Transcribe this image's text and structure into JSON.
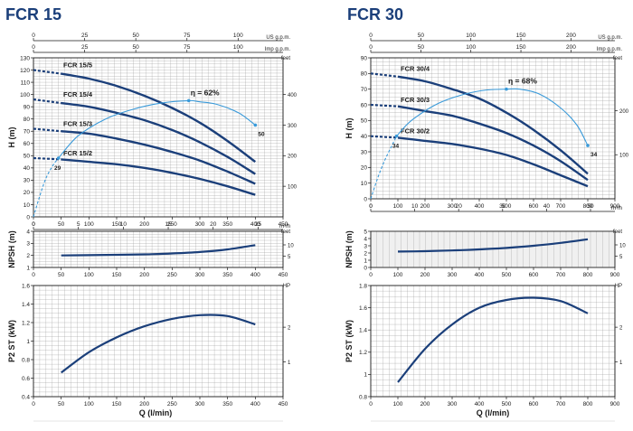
{
  "colors": {
    "curve": "#1b3f7a",
    "efficiency": "#3a9ad9",
    "grid": "#9a9a9a",
    "title": "#1b3f7a",
    "axis": "#1a1a1a"
  },
  "chart_data": [
    {
      "type": "line",
      "title": "FCR 15",
      "xlabel": "Q (l/min)",
      "xlim": [
        0,
        450
      ],
      "xticks": [
        0,
        50,
        100,
        150,
        200,
        250,
        300,
        350,
        400,
        450
      ],
      "top_axis_1": {
        "unit": "US g.p.m.",
        "ticks": [
          "0",
          "25",
          "50",
          "75",
          "100"
        ]
      },
      "top_axis_2": {
        "unit": "Imp g.p.m.",
        "ticks": [
          "0",
          "25",
          "50",
          "75",
          "100"
        ]
      },
      "bottom_axis_2": {
        "unit": "m³/h",
        "ticks": [
          "0",
          "5",
          "10",
          "15",
          "20",
          "25"
        ]
      },
      "panels": {
        "head": {
          "ylabel": "H (m)",
          "ylim": [
            0,
            130
          ],
          "yticks": [
            0,
            10,
            20,
            30,
            40,
            50,
            60,
            70,
            80,
            90,
            100,
            110,
            120,
            130
          ],
          "right_unit": "feet",
          "right_ticks": [
            "100",
            "200",
            "300",
            "400"
          ],
          "series": [
            {
              "name": "FCR 15/5",
              "x": [
                0,
                50,
                100,
                150,
                200,
                250,
                300,
                350,
                400
              ],
              "y": [
                120,
                117,
                113,
                107,
                99,
                89,
                77,
                62,
                45
              ]
            },
            {
              "name": "FCR 15/4",
              "x": [
                0,
                50,
                100,
                150,
                200,
                250,
                300,
                350,
                400
              ],
              "y": [
                96,
                93,
                90,
                85,
                79,
                71,
                61,
                49,
                35
              ]
            },
            {
              "name": "FCR 15/3",
              "x": [
                0,
                50,
                100,
                150,
                200,
                250,
                300,
                350,
                400
              ],
              "y": [
                72,
                70,
                68,
                64,
                59,
                53,
                46,
                37,
                27
              ]
            },
            {
              "name": "FCR 15/2",
              "x": [
                0,
                50,
                100,
                150,
                200,
                250,
                300,
                350,
                400
              ],
              "y": [
                48,
                47,
                45,
                43,
                40,
                36,
                31,
                25,
                18
              ]
            }
          ],
          "efficiency": {
            "label": "η = 62%",
            "start_label": "29",
            "end_label": "50",
            "dashed_x": [
              0,
              10,
              22,
              35,
              45
            ],
            "dashed_y": [
              0,
              15,
              31,
              42,
              48
            ],
            "x": [
              45,
              80,
              130,
              180,
              230,
              280,
              300,
              330,
              370,
              400
            ],
            "y": [
              48,
              66,
              80,
              88,
              93,
              95,
              94,
              92,
              85,
              75
            ]
          }
        },
        "npsh": {
          "ylabel": "NPSH (m)",
          "ylim": [
            1,
            4
          ],
          "yticks": [
            1,
            2,
            3,
            4
          ],
          "right_unit": "feet",
          "right_ticks": [
            "5",
            "10"
          ],
          "x": [
            50,
            100,
            150,
            200,
            250,
            300,
            350,
            400
          ],
          "y": [
            2.0,
            2.02,
            2.05,
            2.09,
            2.16,
            2.28,
            2.5,
            2.85
          ]
        },
        "power": {
          "ylabel": "P2 ST (kW)",
          "ylim": [
            0.4,
            1.6
          ],
          "yticks": [
            0.4,
            0.6,
            0.8,
            1.0,
            1.2,
            1.4,
            1.6
          ],
          "right_unit": "HP",
          "right_ticks": [
            "1",
            "2"
          ],
          "x": [
            50,
            100,
            150,
            200,
            250,
            300,
            350,
            400
          ],
          "y": [
            0.66,
            0.88,
            1.04,
            1.16,
            1.24,
            1.28,
            1.27,
            1.18
          ]
        }
      }
    },
    {
      "type": "line",
      "title": "FCR 30",
      "xlabel": "Q (l/min)",
      "xlim": [
        0,
        900
      ],
      "xticks": [
        0,
        100,
        200,
        300,
        400,
        500,
        600,
        700,
        800,
        900
      ],
      "top_axis_1": {
        "unit": "US g.p.m.",
        "ticks": [
          "0",
          "50",
          "100",
          "150",
          "200"
        ]
      },
      "top_axis_2": {
        "unit": "Imp g.p.m.",
        "ticks": [
          "0",
          "50",
          "100",
          "150",
          "200"
        ]
      },
      "bottom_axis_2": {
        "unit": "m³/h",
        "ticks": [
          "0",
          "10",
          "20",
          "30",
          "40",
          "50"
        ]
      },
      "panels": {
        "head": {
          "ylabel": "H (m)",
          "ylim": [
            0,
            90
          ],
          "yticks": [
            0,
            10,
            20,
            30,
            40,
            50,
            60,
            70,
            80,
            90
          ],
          "right_unit": "feet",
          "right_ticks": [
            "100",
            "200"
          ],
          "series": [
            {
              "name": "FCR 30/4",
              "x": [
                0,
                100,
                200,
                300,
                400,
                500,
                600,
                700,
                800
              ],
              "y": [
                80,
                78,
                75,
                70,
                64,
                55,
                44,
                31,
                16
              ]
            },
            {
              "name": "FCR 30/3",
              "x": [
                0,
                100,
                200,
                300,
                400,
                500,
                600,
                700,
                800
              ],
              "y": [
                60,
                59,
                56,
                53,
                48,
                42,
                34,
                24,
                12
              ]
            },
            {
              "name": "FCR 30/2",
              "x": [
                0,
                100,
                200,
                300,
                400,
                500,
                600,
                700,
                800
              ],
              "y": [
                40,
                39,
                37,
                35,
                32,
                28,
                22,
                15,
                8
              ]
            }
          ],
          "efficiency": {
            "label": "η = 68%",
            "start_label": "34",
            "end_label": "34",
            "dashed_x": [
              0,
              25,
              50,
              75,
              95
            ],
            "dashed_y": [
              0,
              13,
              24,
              33,
              40
            ],
            "x": [
              95,
              150,
              250,
              350,
              430,
              500,
              550,
              620,
              700,
              760,
              800
            ],
            "y": [
              40,
              50,
              61,
              67,
              69.5,
              70,
              70,
              67,
              58,
              47,
              34
            ]
          }
        },
        "npsh": {
          "ylabel": "NPSH (m)",
          "ylim": [
            0,
            5
          ],
          "yticks": [
            0,
            1,
            2,
            3,
            4,
            5
          ],
          "right_unit": "feet",
          "right_ticks": [
            "5",
            "10"
          ],
          "x": [
            100,
            200,
            300,
            400,
            500,
            600,
            700,
            800
          ],
          "y": [
            2.2,
            2.25,
            2.35,
            2.5,
            2.7,
            3.0,
            3.4,
            3.9
          ]
        },
        "power": {
          "ylabel": "P2 ST (kW)",
          "ylim": [
            0.8,
            1.8
          ],
          "yticks": [
            0.8,
            1.0,
            1.2,
            1.4,
            1.6,
            1.8
          ],
          "right_unit": "HP",
          "right_ticks": [
            "1",
            "2"
          ],
          "x": [
            100,
            200,
            300,
            400,
            500,
            600,
            700,
            800
          ],
          "y": [
            0.93,
            1.23,
            1.45,
            1.6,
            1.67,
            1.69,
            1.66,
            1.55
          ]
        }
      }
    }
  ]
}
